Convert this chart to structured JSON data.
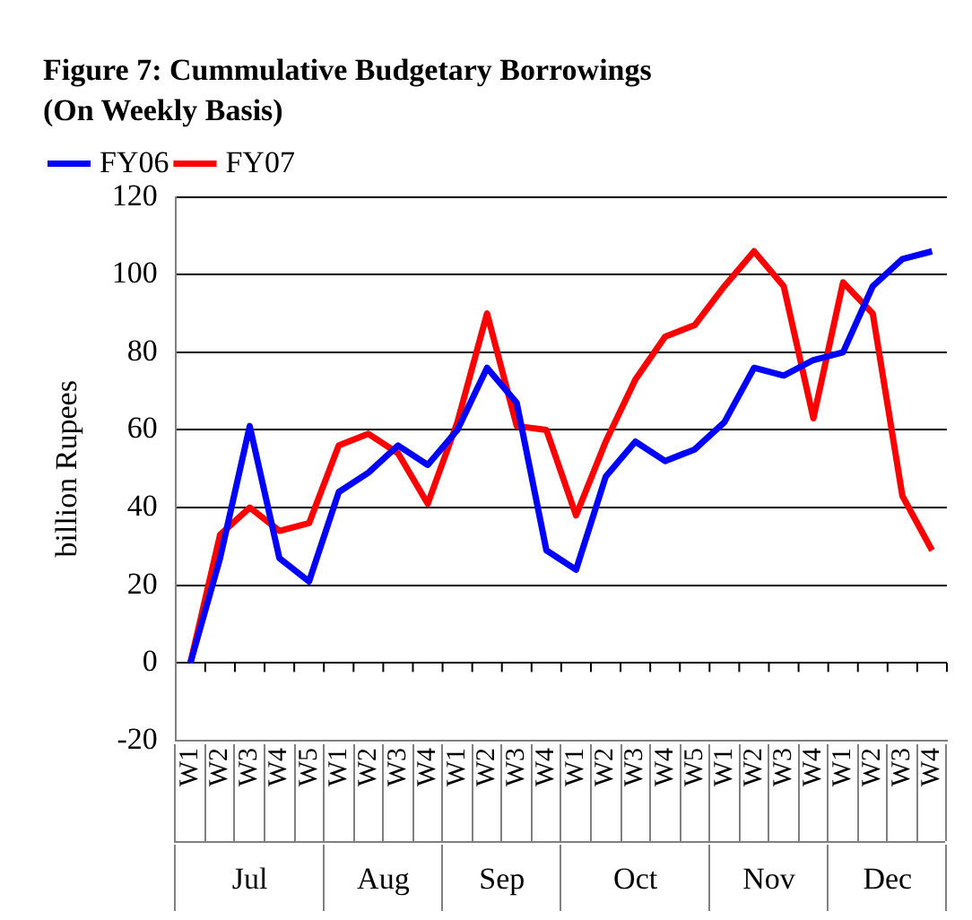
{
  "chart_data": {
    "type": "line",
    "title": "Figure 7: Cummulative Budgetary Borrowings",
    "subtitle": "(On Weekly Basis)",
    "ylabel": "billion Rupees",
    "categories": [
      "W1",
      "W2",
      "W3",
      "W4",
      "W5",
      "W1",
      "W2",
      "W3",
      "W4",
      "W1",
      "W2",
      "W3",
      "W4",
      "W1",
      "W2",
      "W3",
      "W4",
      "W5",
      "W1",
      "W2",
      "W3",
      "W4",
      "W1",
      "W2",
      "W3",
      "W4"
    ],
    "annotations": [
      "Jul",
      "Aug",
      "Sep",
      "Oct",
      "Nov",
      "Dec"
    ],
    "series": [
      {
        "name": "FY06",
        "color": "#0000ff",
        "values": [
          0,
          27,
          61,
          27,
          21,
          44,
          49,
          56,
          51,
          60,
          76,
          67,
          29,
          24,
          48,
          57,
          52,
          55,
          62,
          76,
          74,
          78,
          80,
          97,
          104,
          106
        ]
      },
      {
        "name": "FY07",
        "color": "#ff0000",
        "values": [
          0,
          33,
          40,
          34,
          36,
          56,
          59,
          54,
          41,
          62,
          90,
          61,
          60,
          38,
          57,
          73,
          84,
          87,
          97,
          106,
          97,
          63,
          98,
          90,
          43,
          29
        ]
      }
    ],
    "ylim": [
      -20,
      120
    ],
    "yticks": [
      -20,
      0,
      20,
      40,
      60,
      80,
      100,
      120
    ],
    "grid": "y",
    "legend": "top left",
    "marker": "none",
    "line_style": "solid"
  }
}
